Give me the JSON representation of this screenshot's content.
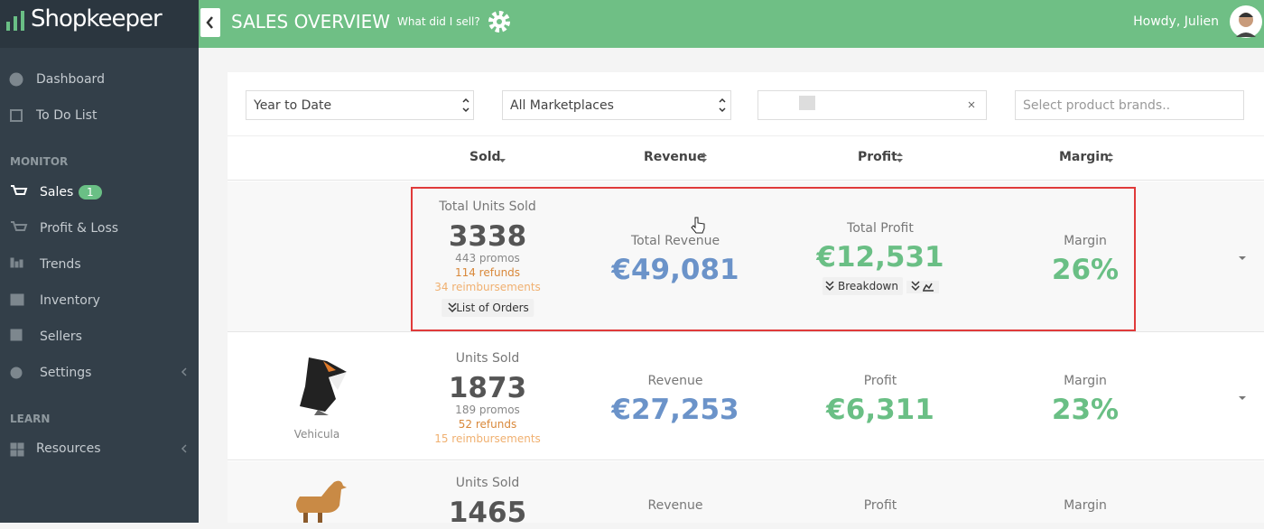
{
  "brand": "Shopkeeper",
  "header": {
    "title": "SALES OVERVIEW",
    "link": "What did I sell?",
    "greeting": "Howdy, Julien"
  },
  "sidebar": {
    "main": [
      "Dashboard",
      "To Do List"
    ],
    "monitor_heading": "MONITOR",
    "monitor": [
      {
        "label": "Sales",
        "badge": 1
      },
      {
        "label": "Profit & Loss"
      },
      {
        "label": "Trends"
      },
      {
        "label": "Inventory"
      },
      {
        "label": "Sellers"
      },
      {
        "label": "Settings"
      }
    ],
    "learn_heading": "LEARN",
    "learn": [
      "Resources"
    ]
  },
  "filters": {
    "period": "Year to Date",
    "marketplace": "All Marketplaces",
    "brands_placeholder": "Select product brands.."
  },
  "columns": [
    "Sold",
    "Revenue",
    "Profit",
    "Margin"
  ],
  "totals": {
    "units_label": "Total Units Sold",
    "units": 3338,
    "promos": "443 promos",
    "refunds": "114 refunds",
    "reimbursements": "34 reimbursements",
    "orders_button": "List of Orders",
    "revenue_label": "Total Revenue",
    "revenue": "€49,081",
    "profit_label": "Total Profit",
    "profit": "€12,531",
    "breakdown": "Breakdown",
    "margin_label": "Margin",
    "margin": "26%"
  },
  "products": [
    {
      "name": "Vehicula",
      "units_label": "Units Sold",
      "units": 1873,
      "promos": "189 promos",
      "refunds": "52 refunds",
      "reimbursements": "15 reimbursements",
      "revenue_label": "Revenue",
      "revenue": "€27,253",
      "profit_label": "Profit",
      "profit": "€6,311",
      "margin_label": "Margin",
      "margin": "23%"
    },
    {
      "units_label": "Units Sold",
      "units": 1465,
      "revenue_label": "Revenue",
      "profit_label": "Profit",
      "margin_label": "Margin"
    }
  ]
}
